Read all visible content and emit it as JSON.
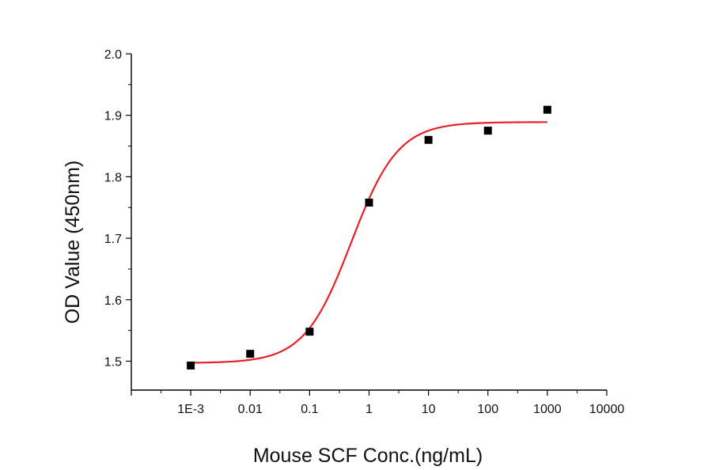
{
  "chart_data": {
    "type": "scatter",
    "xlabel": "Mouse SCF Conc.(ng/mL)",
    "ylabel": "OD Value (450nm)",
    "x_scale": "log10",
    "x_ticks": [
      {
        "value": 0.001,
        "label": "1E-3"
      },
      {
        "value": 0.01,
        "label": "0.01"
      },
      {
        "value": 0.1,
        "label": "0.1"
      },
      {
        "value": 1,
        "label": "1"
      },
      {
        "value": 10,
        "label": "10"
      },
      {
        "value": 100,
        "label": "100"
      },
      {
        "value": 1000,
        "label": "1000"
      },
      {
        "value": 10000,
        "label": "10000"
      }
    ],
    "y_ticks": [
      {
        "value": 1.5,
        "label": "1.5"
      },
      {
        "value": 1.6,
        "label": "1.6"
      },
      {
        "value": 1.7,
        "label": "1.7"
      },
      {
        "value": 1.8,
        "label": "1.8"
      },
      {
        "value": 1.9,
        "label": "1.9"
      },
      {
        "value": 2.0,
        "label": "2.0"
      }
    ],
    "xlim": [
      0.0001,
      10000
    ],
    "ylim": [
      1.453,
      2.0
    ],
    "grid": false,
    "series": [
      {
        "kind": "points",
        "marker": "square",
        "color": "#000000",
        "x": [
          0.001,
          0.01,
          0.1,
          1,
          10,
          100,
          1000
        ],
        "y": [
          1.493,
          1.512,
          1.548,
          1.758,
          1.86,
          1.875,
          1.909
        ]
      },
      {
        "kind": "fit-curve",
        "model": "4PL",
        "color": "#e8202a",
        "bottom": 1.497,
        "top": 1.889,
        "ec50": 0.5,
        "hill": 1.1,
        "x_range": [
          0.001,
          1000
        ]
      }
    ]
  }
}
